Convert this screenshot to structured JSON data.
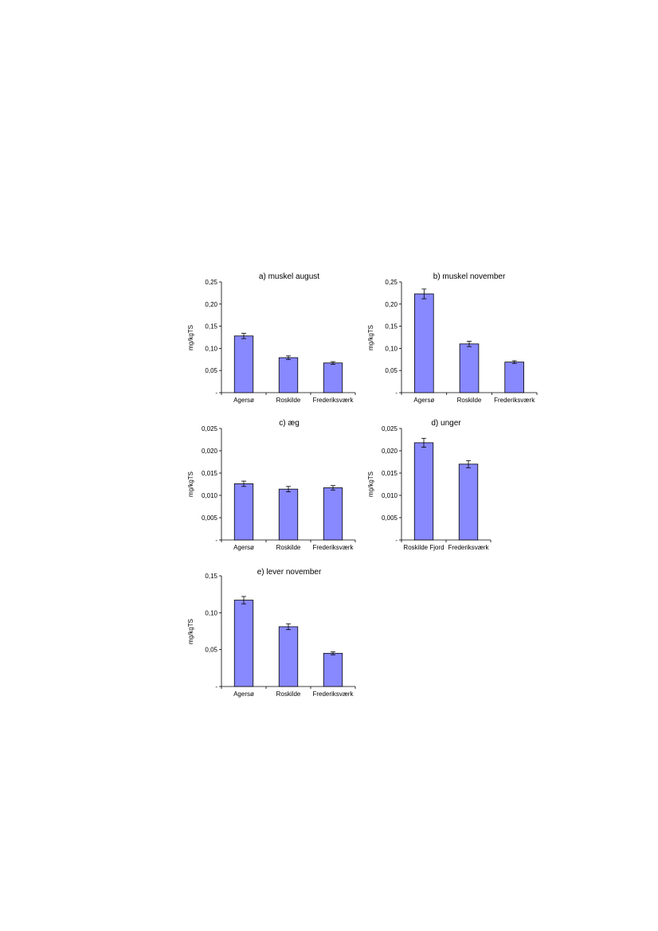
{
  "colors": {
    "bar": "#8888ff",
    "bar_stroke": "#000000"
  },
  "chart_data": [
    {
      "type": "bar",
      "title": "a) muskel august",
      "ylabel": "mg/kgTS",
      "xlabel": "",
      "categories": [
        "Agersø",
        "Roskilde",
        "Frederiksværk"
      ],
      "values": [
        0.128,
        0.079,
        0.067
      ],
      "errors": [
        0.006,
        0.004,
        0.003
      ],
      "ylim": [
        0,
        0.25
      ],
      "yticks": [
        0,
        0.05,
        0.1,
        0.15,
        0.2,
        0.25
      ],
      "ytick_labels": [
        "-",
        "0,05",
        "0,10",
        "0,15",
        "0,20",
        "0,25"
      ],
      "grid": false
    },
    {
      "type": "bar",
      "title": "b) muskel november",
      "ylabel": "mg/kgTS",
      "xlabel": "",
      "categories": [
        "Agersø",
        "Roskilde",
        "Frederiksværk"
      ],
      "values": [
        0.223,
        0.11,
        0.069
      ],
      "errors": [
        0.011,
        0.006,
        0.003
      ],
      "ylim": [
        0,
        0.25
      ],
      "yticks": [
        0,
        0.05,
        0.1,
        0.15,
        0.2,
        0.25
      ],
      "ytick_labels": [
        "-",
        "0,05",
        "0,10",
        "0,15",
        "0,20",
        "0,25"
      ],
      "grid": false
    },
    {
      "type": "bar",
      "title": "c) æg",
      "ylabel": "mg/kgTS",
      "xlabel": "",
      "categories": [
        "Agersø",
        "Roskilde",
        "Frederiksværk"
      ],
      "values": [
        0.0126,
        0.0114,
        0.0117
      ],
      "errors": [
        0.0006,
        0.0006,
        0.0005
      ],
      "ylim": [
        0,
        0.025
      ],
      "yticks": [
        0,
        0.005,
        0.01,
        0.015,
        0.02,
        0.025
      ],
      "ytick_labels": [
        "-",
        "0,005",
        "0,010",
        "0,015",
        "0,020",
        "0,025"
      ],
      "grid": false
    },
    {
      "type": "bar",
      "title": "d) unger",
      "ylabel": "mg/kgTS",
      "xlabel": "",
      "categories": [
        "Roskilde Fjord",
        "Frederiksværk"
      ],
      "values": [
        0.0218,
        0.017
      ],
      "errors": [
        0.001,
        0.0008
      ],
      "ylim": [
        0,
        0.025
      ],
      "yticks": [
        0,
        0.005,
        0.01,
        0.015,
        0.02,
        0.025
      ],
      "ytick_labels": [
        "-",
        "0,005",
        "0,010",
        "0,015",
        "0,020",
        "0,025"
      ],
      "grid": false
    },
    {
      "type": "bar",
      "title": "e) lever november",
      "ylabel": "mg/kgTS",
      "xlabel": "",
      "categories": [
        "Agersø",
        "Roskilde",
        "Frederiksværk"
      ],
      "values": [
        0.117,
        0.081,
        0.045
      ],
      "errors": [
        0.005,
        0.004,
        0.002
      ],
      "ylim": [
        0,
        0.15
      ],
      "yticks": [
        0,
        0.05,
        0.1,
        0.15
      ],
      "ytick_labels": [
        "-",
        "0,05",
        "0,10",
        "0,15"
      ],
      "grid": false
    }
  ]
}
